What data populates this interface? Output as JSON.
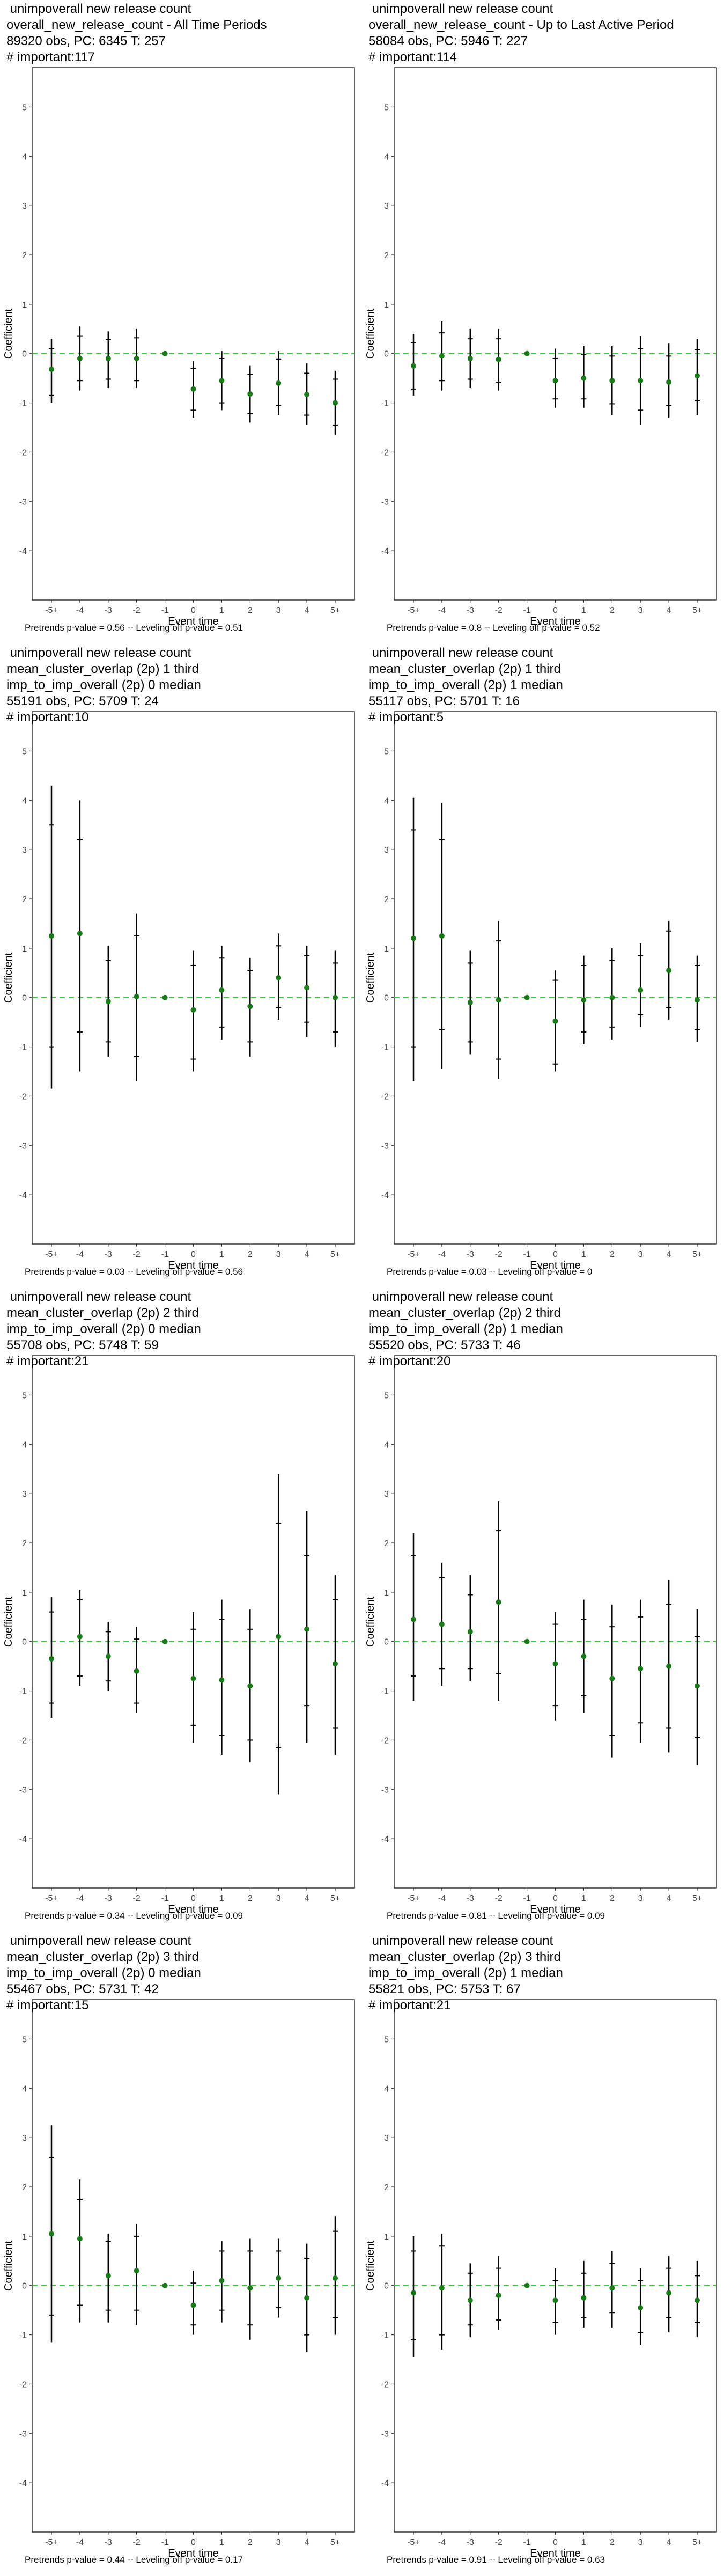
{
  "colors": {
    "point": "#1a7a1a",
    "zero_line": "#33cc33",
    "error_bar": "#000000",
    "frame": "#333333"
  },
  "chart_data": [
    {
      "type": "scatter",
      "title_lines": [
        " unimpoverall new release count",
        "overall_new_release_count - All Time Periods",
        "89320 obs, PC: 6345 T: 257",
        "# important:117"
      ],
      "xlabel": "Event time",
      "ylabel": "Coefficient",
      "categories": [
        "-5+",
        "-4",
        "-3",
        "-2",
        "-1",
        "0",
        "1",
        "2",
        "3",
        "4",
        "5+"
      ],
      "ylim": [
        -5,
        5.8
      ],
      "yticks": [
        -4,
        -3,
        -2,
        -1,
        0,
        1,
        2,
        3,
        4,
        5
      ],
      "grid": false,
      "estimates": [
        -0.32,
        -0.1,
        -0.1,
        -0.1,
        0,
        -0.72,
        -0.55,
        -0.82,
        -0.6,
        -0.83,
        -1.0
      ],
      "ci_outer": [
        [
          -1.0,
          0.3
        ],
        [
          -0.75,
          0.55
        ],
        [
          -0.7,
          0.45
        ],
        [
          -0.7,
          0.5
        ],
        [
          0,
          0
        ],
        [
          -1.3,
          -0.15
        ],
        [
          -1.15,
          0.05
        ],
        [
          -1.4,
          -0.25
        ],
        [
          -1.25,
          0.05
        ],
        [
          -1.45,
          -0.2
        ],
        [
          -1.65,
          -0.35
        ]
      ],
      "ci_inner": [
        [
          -0.85,
          0.1
        ],
        [
          -0.55,
          0.35
        ],
        [
          -0.52,
          0.28
        ],
        [
          -0.55,
          0.32
        ],
        [
          0,
          0
        ],
        [
          -1.15,
          -0.3
        ],
        [
          -1.0,
          -0.1
        ],
        [
          -1.22,
          -0.42
        ],
        [
          -1.05,
          -0.12
        ],
        [
          -1.25,
          -0.4
        ],
        [
          -1.45,
          -0.52
        ]
      ],
      "footnote": "Pretrends p-value = 0.56 -- Leveling off p-value = 0.51"
    },
    {
      "type": "scatter",
      "title_lines": [
        " unimpoverall new release count",
        "overall_new_release_count - Up to Last Active Period",
        "58084 obs, PC: 5946 T: 227",
        "# important:114"
      ],
      "xlabel": "Event time",
      "ylabel": "Coefficient",
      "categories": [
        "-5+",
        "-4",
        "-3",
        "-2",
        "-1",
        "0",
        "1",
        "2",
        "3",
        "4",
        "5+"
      ],
      "ylim": [
        -5,
        5.8
      ],
      "yticks": [
        -4,
        -3,
        -2,
        -1,
        0,
        1,
        2,
        3,
        4,
        5
      ],
      "grid": false,
      "estimates": [
        -0.25,
        -0.05,
        -0.1,
        -0.12,
        0,
        -0.55,
        -0.5,
        -0.55,
        -0.55,
        -0.58,
        -0.45
      ],
      "ci_outer": [
        [
          -0.85,
          0.4
        ],
        [
          -0.75,
          0.65
        ],
        [
          -0.7,
          0.5
        ],
        [
          -0.75,
          0.5
        ],
        [
          0,
          0
        ],
        [
          -1.1,
          0.1
        ],
        [
          -1.1,
          0.15
        ],
        [
          -1.25,
          0.15
        ],
        [
          -1.45,
          0.35
        ],
        [
          -1.3,
          0.2
        ],
        [
          -1.25,
          0.3
        ]
      ],
      "ci_inner": [
        [
          -0.72,
          0.22
        ],
        [
          -0.55,
          0.42
        ],
        [
          -0.52,
          0.3
        ],
        [
          -0.58,
          0.3
        ],
        [
          0,
          0
        ],
        [
          -0.92,
          -0.1
        ],
        [
          -0.92,
          -0.02
        ],
        [
          -1.02,
          -0.05
        ],
        [
          -1.15,
          0.1
        ],
        [
          -1.05,
          -0.05
        ],
        [
          -0.95,
          0.08
        ]
      ],
      "footnote": "Pretrends p-value = 0.8 -- Leveling off p-value = 0.52"
    },
    {
      "type": "scatter",
      "title_lines": [
        " unimpoverall new release count",
        "mean_cluster_overlap (2p) 1 third",
        "imp_to_imp_overall (2p) 0 median",
        "55191 obs, PC: 5709 T: 24",
        "# important:10"
      ],
      "xlabel": "Event time",
      "ylabel": "Coefficient",
      "categories": [
        "-5+",
        "-4",
        "-3",
        "-2",
        "-1",
        "0",
        "1",
        "2",
        "3",
        "4",
        "5+"
      ],
      "ylim": [
        -5,
        5.8
      ],
      "yticks": [
        -4,
        -3,
        -2,
        -1,
        0,
        1,
        2,
        3,
        4,
        5
      ],
      "grid": false,
      "estimates": [
        1.25,
        1.3,
        -0.08,
        0.02,
        0,
        -0.25,
        0.15,
        -0.18,
        0.4,
        0.2,
        0.0
      ],
      "ci_outer": [
        [
          -1.85,
          4.3
        ],
        [
          -1.5,
          4.0
        ],
        [
          -1.2,
          1.05
        ],
        [
          -1.7,
          1.7
        ],
        [
          0,
          0
        ],
        [
          -1.5,
          0.95
        ],
        [
          -0.85,
          1.05
        ],
        [
          -1.2,
          0.8
        ],
        [
          -0.45,
          1.3
        ],
        [
          -0.8,
          1.05
        ],
        [
          -1.0,
          0.95
        ]
      ],
      "ci_inner": [
        [
          -1.0,
          3.5
        ],
        [
          -0.7,
          3.2
        ],
        [
          -0.9,
          0.75
        ],
        [
          -1.2,
          1.25
        ],
        [
          0,
          0
        ],
        [
          -1.25,
          0.65
        ],
        [
          -0.6,
          0.8
        ],
        [
          -0.9,
          0.55
        ],
        [
          -0.2,
          1.05
        ],
        [
          -0.5,
          0.85
        ],
        [
          -0.7,
          0.7
        ]
      ],
      "footnote": "Pretrends p-value = 0.03 -- Leveling off p-value = 0.56"
    },
    {
      "type": "scatter",
      "title_lines": [
        " unimpoverall new release count",
        "mean_cluster_overlap (2p) 1 third",
        "imp_to_imp_overall (2p) 1 median",
        "55117 obs, PC: 5701 T: 16",
        "# important:5"
      ],
      "xlabel": "Event time",
      "ylabel": "Coefficient",
      "categories": [
        "-5+",
        "-4",
        "-3",
        "-2",
        "-1",
        "0",
        "1",
        "2",
        "3",
        "4",
        "5+"
      ],
      "ylim": [
        -5,
        5.8
      ],
      "yticks": [
        -4,
        -3,
        -2,
        -1,
        0,
        1,
        2,
        3,
        4,
        5
      ],
      "grid": false,
      "estimates": [
        1.2,
        1.25,
        -0.1,
        -0.05,
        0,
        -0.48,
        -0.05,
        0.0,
        0.15,
        0.55,
        -0.05
      ],
      "ci_outer": [
        [
          -1.7,
          4.05
        ],
        [
          -1.45,
          3.95
        ],
        [
          -1.15,
          0.95
        ],
        [
          -1.65,
          1.55
        ],
        [
          0,
          0
        ],
        [
          -1.5,
          0.55
        ],
        [
          -0.95,
          0.85
        ],
        [
          -0.85,
          1.0
        ],
        [
          -0.6,
          1.1
        ],
        [
          -0.45,
          1.55
        ],
        [
          -0.9,
          0.85
        ]
      ],
      "ci_inner": [
        [
          -1.0,
          3.4
        ],
        [
          -0.65,
          3.2
        ],
        [
          -0.9,
          0.7
        ],
        [
          -1.25,
          1.15
        ],
        [
          0,
          0
        ],
        [
          -1.35,
          0.35
        ],
        [
          -0.7,
          0.65
        ],
        [
          -0.6,
          0.75
        ],
        [
          -0.35,
          0.85
        ],
        [
          -0.2,
          1.35
        ],
        [
          -0.65,
          0.65
        ]
      ],
      "footnote": "Pretrends p-value = 0.03 -- Leveling off p-value = 0"
    },
    {
      "type": "scatter",
      "title_lines": [
        " unimpoverall new release count",
        "mean_cluster_overlap (2p) 2 third",
        "imp_to_imp_overall (2p) 0 median",
        "55708 obs, PC: 5748 T: 59",
        "# important:21"
      ],
      "xlabel": "Event time",
      "ylabel": "Coefficient",
      "categories": [
        "-5+",
        "-4",
        "-3",
        "-2",
        "-1",
        "0",
        "1",
        "2",
        "3",
        "4",
        "5+"
      ],
      "ylim": [
        -5,
        5.8
      ],
      "yticks": [
        -4,
        -3,
        -2,
        -1,
        0,
        1,
        2,
        3,
        4,
        5
      ],
      "grid": false,
      "estimates": [
        -0.35,
        0.1,
        -0.3,
        -0.6,
        0,
        -0.75,
        -0.78,
        -0.9,
        0.1,
        0.25,
        -0.45
      ],
      "ci_outer": [
        [
          -1.55,
          0.9
        ],
        [
          -0.9,
          1.05
        ],
        [
          -1.0,
          0.4
        ],
        [
          -1.45,
          0.3
        ],
        [
          0,
          0
        ],
        [
          -2.05,
          0.6
        ],
        [
          -2.3,
          0.85
        ],
        [
          -2.45,
          0.65
        ],
        [
          -3.1,
          3.4
        ],
        [
          -2.05,
          2.65
        ],
        [
          -2.3,
          1.35
        ]
      ],
      "ci_inner": [
        [
          -1.25,
          0.6
        ],
        [
          -0.7,
          0.85
        ],
        [
          -0.8,
          0.2
        ],
        [
          -1.25,
          0.05
        ],
        [
          0,
          0
        ],
        [
          -1.7,
          0.25
        ],
        [
          -1.9,
          0.45
        ],
        [
          -2.0,
          0.25
        ],
        [
          -2.15,
          2.4
        ],
        [
          -1.3,
          1.75
        ],
        [
          -1.75,
          0.85
        ]
      ],
      "footnote": "Pretrends p-value = 0.34 -- Leveling off p-value = 0.09"
    },
    {
      "type": "scatter",
      "title_lines": [
        " unimpoverall new release count",
        "mean_cluster_overlap (2p) 2 third",
        "imp_to_imp_overall (2p) 1 median",
        "55520 obs, PC: 5733 T: 46",
        "# important:20"
      ],
      "xlabel": "Event time",
      "ylabel": "Coefficient",
      "categories": [
        "-5+",
        "-4",
        "-3",
        "-2",
        "-1",
        "0",
        "1",
        "2",
        "3",
        "4",
        "5+"
      ],
      "ylim": [
        -5,
        5.8
      ],
      "yticks": [
        -4,
        -3,
        -2,
        -1,
        0,
        1,
        2,
        3,
        4,
        5
      ],
      "grid": false,
      "estimates": [
        0.45,
        0.35,
        0.2,
        0.8,
        0,
        -0.45,
        -0.3,
        -0.75,
        -0.55,
        -0.5,
        -0.9
      ],
      "ci_outer": [
        [
          -1.2,
          2.2
        ],
        [
          -0.9,
          1.6
        ],
        [
          -0.8,
          1.35
        ],
        [
          -1.2,
          2.85
        ],
        [
          0,
          0
        ],
        [
          -1.6,
          0.6
        ],
        [
          -1.45,
          0.85
        ],
        [
          -2.35,
          0.75
        ],
        [
          -2.05,
          0.85
        ],
        [
          -2.25,
          1.25
        ],
        [
          -2.5,
          0.65
        ]
      ],
      "ci_inner": [
        [
          -0.7,
          1.75
        ],
        [
          -0.55,
          1.3
        ],
        [
          -0.55,
          0.95
        ],
        [
          -0.65,
          2.25
        ],
        [
          0,
          0
        ],
        [
          -1.3,
          0.35
        ],
        [
          -1.1,
          0.45
        ],
        [
          -1.9,
          0.3
        ],
        [
          -1.65,
          0.5
        ],
        [
          -1.75,
          0.75
        ],
        [
          -1.95,
          0.1
        ]
      ],
      "footnote": "Pretrends p-value = 0.81 -- Leveling off p-value = 0.09"
    },
    {
      "type": "scatter",
      "title_lines": [
        " unimpoverall new release count",
        "mean_cluster_overlap (2p) 3 third",
        "imp_to_imp_overall (2p) 0 median",
        "55467 obs, PC: 5731 T: 42",
        "# important:15"
      ],
      "xlabel": "Event time",
      "ylabel": "Coefficient",
      "categories": [
        "-5+",
        "-4",
        "-3",
        "-2",
        "-1",
        "0",
        "1",
        "2",
        "3",
        "4",
        "5+"
      ],
      "ylim": [
        -5,
        5.8
      ],
      "yticks": [
        -4,
        -3,
        -2,
        -1,
        0,
        1,
        2,
        3,
        4,
        5
      ],
      "grid": false,
      "estimates": [
        1.05,
        0.95,
        0.2,
        0.3,
        0,
        -0.4,
        0.1,
        -0.05,
        0.15,
        -0.25,
        0.15
      ],
      "ci_outer": [
        [
          -1.15,
          3.25
        ],
        [
          -0.75,
          2.15
        ],
        [
          -0.75,
          1.05
        ],
        [
          -0.8,
          1.25
        ],
        [
          0,
          0
        ],
        [
          -1.0,
          0.3
        ],
        [
          -0.75,
          0.9
        ],
        [
          -1.1,
          0.95
        ],
        [
          -0.65,
          0.95
        ],
        [
          -1.35,
          0.85
        ],
        [
          -1.0,
          1.4
        ]
      ],
      "ci_inner": [
        [
          -0.6,
          2.6
        ],
        [
          -0.4,
          1.75
        ],
        [
          -0.5,
          0.9
        ],
        [
          -0.5,
          1.0
        ],
        [
          0,
          0
        ],
        [
          -0.8,
          0.05
        ],
        [
          -0.5,
          0.7
        ],
        [
          -0.8,
          0.7
        ],
        [
          -0.45,
          0.7
        ],
        [
          -1.0,
          0.55
        ],
        [
          -0.65,
          1.1
        ]
      ],
      "footnote": "Pretrends p-value = 0.44 -- Leveling off p-value = 0.17"
    },
    {
      "type": "scatter",
      "title_lines": [
        " unimpoverall new release count",
        "mean_cluster_overlap (2p) 3 third",
        "imp_to_imp_overall (2p) 1 median",
        "55821 obs, PC: 5753 T: 67",
        "# important:21"
      ],
      "xlabel": "Event time",
      "ylabel": "Coefficient",
      "categories": [
        "-5+",
        "-4",
        "-3",
        "-2",
        "-1",
        "0",
        "1",
        "2",
        "3",
        "4",
        "5+"
      ],
      "ylim": [
        -5,
        5.8
      ],
      "yticks": [
        -4,
        -3,
        -2,
        -1,
        0,
        1,
        2,
        3,
        4,
        5
      ],
      "grid": false,
      "estimates": [
        -0.15,
        -0.05,
        -0.3,
        -0.2,
        0,
        -0.3,
        -0.25,
        -0.05,
        -0.45,
        -0.15,
        -0.3
      ],
      "ci_outer": [
        [
          -1.45,
          1.0
        ],
        [
          -1.3,
          1.05
        ],
        [
          -1.05,
          0.45
        ],
        [
          -0.9,
          0.6
        ],
        [
          0,
          0
        ],
        [
          -1.0,
          0.35
        ],
        [
          -0.85,
          0.5
        ],
        [
          -0.85,
          0.7
        ],
        [
          -1.2,
          0.35
        ],
        [
          -0.95,
          0.6
        ],
        [
          -1.05,
          0.5
        ]
      ],
      "ci_inner": [
        [
          -1.1,
          0.7
        ],
        [
          -1.0,
          0.8
        ],
        [
          -0.8,
          0.25
        ],
        [
          -0.7,
          0.35
        ],
        [
          0,
          0
        ],
        [
          -0.75,
          0.1
        ],
        [
          -0.65,
          0.25
        ],
        [
          -0.55,
          0.45
        ],
        [
          -0.95,
          0.1
        ],
        [
          -0.65,
          0.35
        ],
        [
          -0.75,
          0.2
        ]
      ],
      "footnote": "Pretrends p-value = 0.91 -- Leveling off p-value = 0.63"
    }
  ]
}
